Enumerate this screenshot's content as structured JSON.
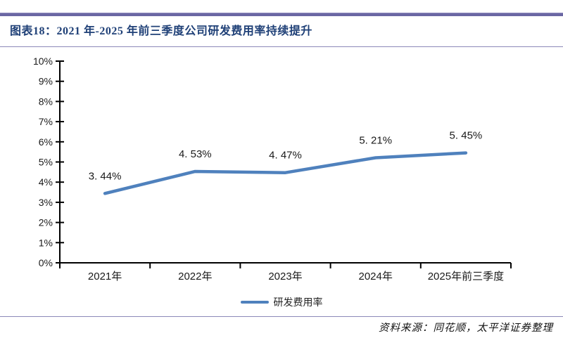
{
  "header": {
    "title": "图表18：2021 年-2025 年前三季度公司研发费用率持续提升"
  },
  "chart_data": {
    "type": "line",
    "title": "2021 年-2025 年前三季度公司研发费用率持续提升",
    "categories": [
      "2021年",
      "2022年",
      "2023年",
      "2024年",
      "2025年前三季度"
    ],
    "series": [
      {
        "name": "研发费用率",
        "values": [
          3.44,
          4.53,
          4.47,
          5.21,
          5.45
        ],
        "color": "#4F81BD"
      }
    ],
    "point_labels": [
      "3. 44%",
      "4. 53%",
      "4. 47%",
      "5. 21%",
      "5. 45%"
    ],
    "y_ticks": [
      "0%",
      "1%",
      "2%",
      "3%",
      "4%",
      "5%",
      "6%",
      "7%",
      "8%",
      "9%",
      "10%"
    ],
    "ylim": [
      0,
      10
    ],
    "xlabel": "",
    "ylabel": "",
    "grid": false,
    "legend_position": "bottom"
  },
  "footer": {
    "source": "资料来源：同花顺，太平洋证券整理"
  },
  "colors": {
    "title": "#1F4077",
    "rule_thick": "#6B67A3",
    "rule_thin": "#8B88B8",
    "axis": "#000000",
    "line": "#4F81BD"
  }
}
